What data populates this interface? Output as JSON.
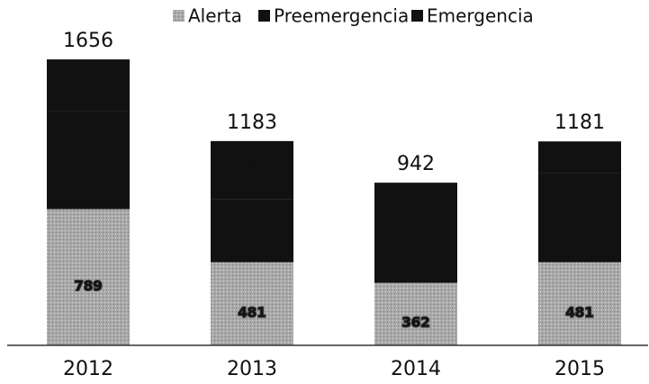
{
  "chart_data": {
    "type": "stacked_bar",
    "categories": [
      "2012",
      "2013",
      "2014",
      "2015"
    ],
    "series": [
      {
        "name": "Alerta",
        "color": "#a9a9a9",
        "values": [
          789,
          481,
          362,
          481
        ]
      },
      {
        "name": "Preemergencia",
        "color": "#111111",
        "values": [
          570,
          366,
          461,
          516
        ]
      },
      {
        "name": "Emergencia",
        "color": "#111111",
        "values": [
          297,
          336,
          119,
          184
        ]
      }
    ],
    "totals": [
      1656,
      1183,
      942,
      1181
    ],
    "value_labels_series": [
      0,
      2
    ],
    "ylim": [
      0,
      1750
    ],
    "legend": "top"
  }
}
